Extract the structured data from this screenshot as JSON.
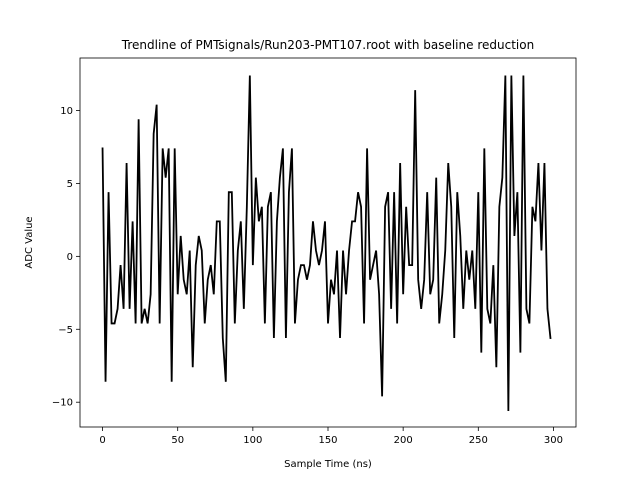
{
  "chart_data": {
    "type": "line",
    "title": "Trendline of PMTsignals/Run203-PMT107.root with baseline reduction",
    "xlabel": "Sample Time (ns)",
    "ylabel": "ADC Value",
    "xlim": [
      -15,
      315
    ],
    "ylim": [
      -11.7,
      13.6
    ],
    "xticks": [
      0,
      50,
      100,
      150,
      200,
      250,
      300
    ],
    "yticks": [
      -10,
      -5,
      0,
      5,
      10
    ],
    "xtick_labels": [
      "0",
      "50",
      "100",
      "150",
      "200",
      "250",
      "300"
    ],
    "ytick_labels": [
      "−10",
      "−5",
      "0",
      "5",
      "10"
    ],
    "grid": false,
    "line_color": "#000000",
    "series": [
      {
        "x": [
          0,
          2,
          4,
          6,
          8,
          10,
          12,
          14,
          16,
          18,
          20,
          22,
          24,
          26,
          28,
          30,
          32,
          34,
          36,
          38,
          40,
          42,
          44,
          46,
          48,
          50,
          52,
          54,
          56,
          58,
          60,
          62,
          64,
          66,
          68,
          70,
          72,
          74,
          76,
          78,
          80,
          82,
          84,
          86,
          88,
          90,
          92,
          94,
          96,
          98,
          100,
          102,
          104,
          106,
          108,
          110,
          112,
          114,
          116,
          118,
          120,
          122,
          124,
          126,
          128,
          130,
          132,
          134,
          136,
          138,
          140,
          142,
          144,
          146,
          148,
          150,
          152,
          154,
          156,
          158,
          160,
          162,
          164,
          166,
          168,
          170,
          172,
          174,
          176,
          178,
          180,
          182,
          184,
          186,
          188,
          190,
          192,
          194,
          196,
          198,
          200,
          202,
          204,
          206,
          208,
          210,
          212,
          214,
          216,
          218,
          220,
          222,
          224,
          226,
          228,
          230,
          232,
          234,
          236,
          238,
          240,
          242,
          244,
          246,
          248,
          250,
          252,
          254,
          256,
          258,
          260,
          262,
          264,
          266,
          268,
          270,
          272,
          274,
          276,
          278,
          280,
          282,
          284,
          286,
          288,
          290,
          292,
          294,
          296,
          298
        ],
        "y": [
          7.4,
          -8.6,
          4.4,
          -4.6,
          -4.6,
          -3.6,
          -0.6,
          -3.6,
          6.4,
          -3.6,
          2.4,
          -4.6,
          9.4,
          -4.6,
          -3.6,
          -4.6,
          -2.6,
          8.4,
          10.4,
          -4.6,
          7.4,
          5.4,
          7.4,
          -8.6,
          7.4,
          -2.6,
          1.4,
          -1.6,
          -2.6,
          0.4,
          -7.6,
          -0.6,
          1.4,
          0.4,
          -4.6,
          -1.6,
          -0.6,
          -2.6,
          2.4,
          2.4,
          -5.6,
          -8.6,
          4.4,
          4.4,
          -4.6,
          0.4,
          2.4,
          -3.6,
          3.4,
          12.4,
          -0.6,
          5.4,
          2.4,
          3.4,
          -4.6,
          3.4,
          4.4,
          -5.6,
          2.4,
          5.4,
          7.4,
          -5.6,
          4.4,
          7.4,
          -4.6,
          -1.6,
          -0.6,
          -0.6,
          -1.6,
          -0.6,
          2.4,
          0.4,
          -0.6,
          0.4,
          2.4,
          -4.6,
          -1.6,
          -2.6,
          0.4,
          -5.6,
          0.4,
          -2.6,
          0.4,
          2.4,
          2.4,
          4.4,
          3.4,
          -4.6,
          7.4,
          -1.6,
          -0.6,
          0.4,
          -2.6,
          -9.6,
          3.4,
          4.4,
          -3.6,
          4.4,
          -4.6,
          6.4,
          -2.6,
          3.4,
          -0.6,
          -0.6,
          11.4,
          -1.6,
          -3.6,
          -1.6,
          4.4,
          -2.6,
          -1.6,
          5.4,
          -4.6,
          -2.6,
          0.4,
          6.4,
          3.4,
          -5.6,
          4.4,
          1.4,
          -3.6,
          0.4,
          -1.6,
          0.4,
          -3.6,
          4.4,
          -6.6,
          7.4,
          -3.6,
          -4.6,
          -0.6,
          -7.6,
          3.4,
          5.4,
          12.4,
          -10.6,
          12.4,
          1.4,
          4.4,
          -6.6,
          12.4,
          -3.6,
          -4.6,
          3.4,
          2.4,
          6.4,
          0.4,
          6.4,
          -3.6,
          -5.6
        ]
      }
    ]
  }
}
